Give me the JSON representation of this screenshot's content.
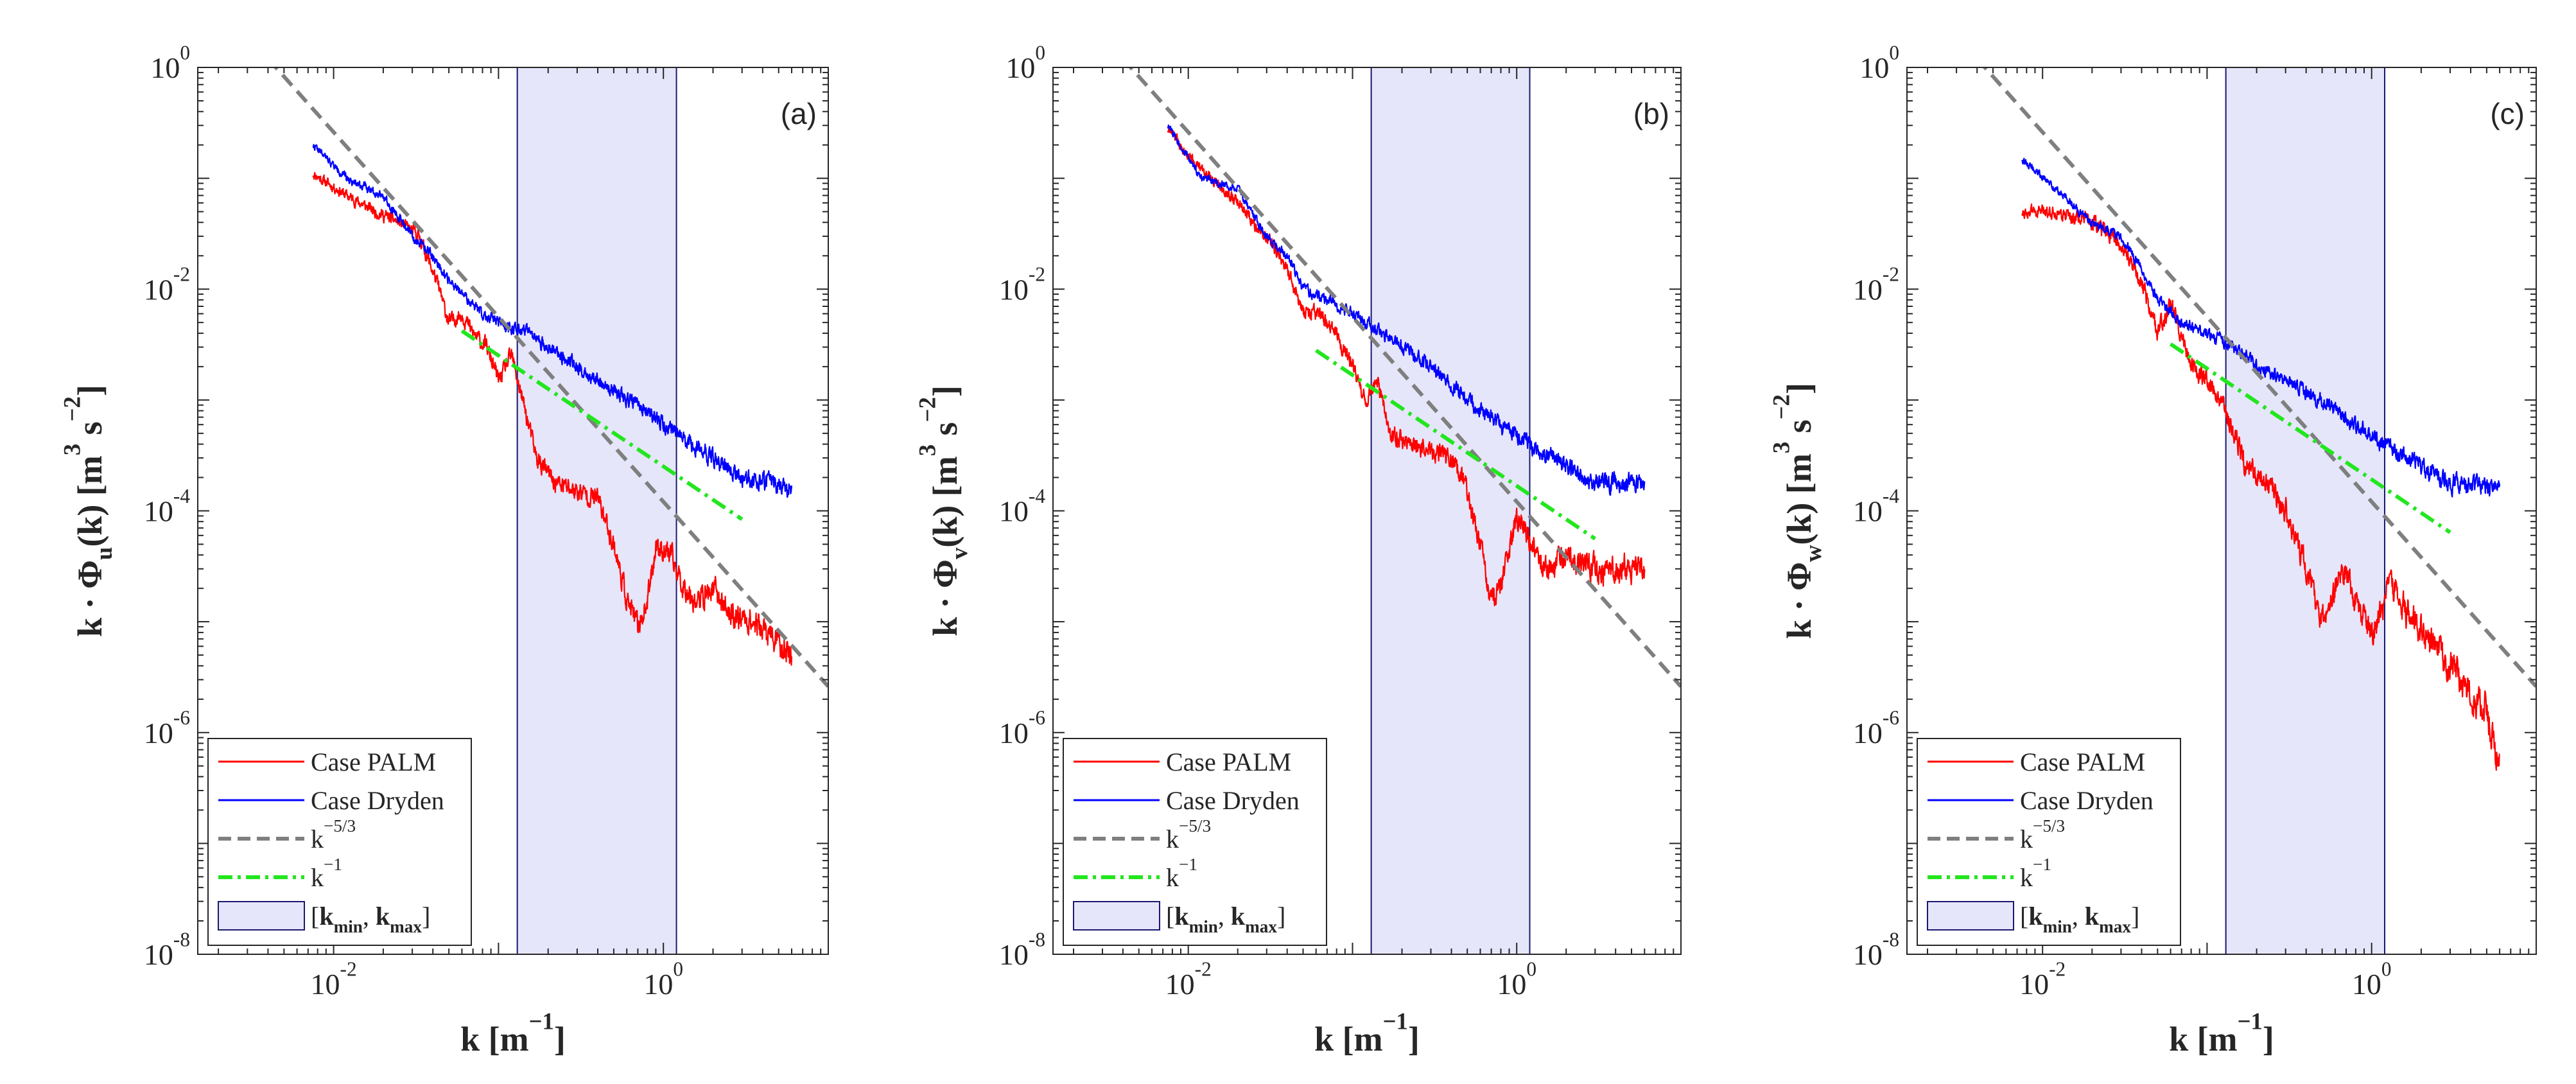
{
  "chart_data": [
    {
      "type": "line",
      "panel": "(a)",
      "ylabel": {
        "pre": "k · ",
        "phi": "Φ",
        "sub": "u",
        "post": "(k) [",
        "m": "m",
        "m_sup": "3",
        "s": " s",
        "s_sup": "−2",
        "close": "]"
      },
      "xlabel": {
        "k": "k",
        "open": " [",
        "m": "m",
        "sup": "−1",
        "close": "]"
      },
      "xscale": "log",
      "yscale": "log",
      "xlim": [
        0.0015,
        10.0
      ],
      "ylim": [
        1e-08,
        1.0
      ],
      "xticks": [
        0.01,
        1.0
      ],
      "xtick_base": "10",
      "xtick_exps": [
        "-2",
        "0"
      ],
      "yticks": [
        1e-08,
        1e-06,
        0.0001,
        0.01,
        1.0
      ],
      "ytick_base": "10",
      "ytick_exps": [
        "-8",
        "-6",
        "-4",
        "-2",
        "0"
      ],
      "band": {
        "kmin": 0.13,
        "kmax": 1.2
      },
      "series": [
        {
          "name": "Case PALM",
          "color": "#ff0000",
          "style": "solid",
          "seed": 11,
          "noise": 0.1,
          "control": [
            [
              0.0075,
              0.11
            ],
            [
              0.012,
              0.07
            ],
            [
              0.018,
              0.05
            ],
            [
              0.025,
              0.04
            ],
            [
              0.033,
              0.03
            ],
            [
              0.042,
              0.012
            ],
            [
              0.05,
              0.005
            ],
            [
              0.06,
              0.006
            ],
            [
              0.07,
              0.004
            ],
            [
              0.085,
              0.003
            ],
            [
              0.1,
              0.0015
            ],
            [
              0.12,
              0.0025
            ],
            [
              0.14,
              0.001
            ],
            [
              0.17,
              0.0003
            ],
            [
              0.22,
              0.00018
            ],
            [
              0.3,
              0.00015
            ],
            [
              0.4,
              0.00013
            ],
            [
              0.5,
              5e-05
            ],
            [
              0.6,
              1.6e-05
            ],
            [
              0.7,
              9e-06
            ],
            [
              0.8,
              1.5e-05
            ],
            [
              0.9,
              5e-05
            ],
            [
              1.1,
              4e-05
            ],
            [
              1.3,
              2.2e-05
            ],
            [
              1.6,
              1.5e-05
            ],
            [
              2.0,
              2e-05
            ],
            [
              2.5,
              1.2e-05
            ],
            [
              3.5,
              1e-05
            ],
            [
              6.0,
              5e-06
            ]
          ]
        },
        {
          "name": "Case Dryden",
          "color": "#0000ff",
          "style": "solid",
          "seed": 22,
          "noise": 0.07,
          "control": [
            [
              0.0075,
              0.2
            ],
            [
              0.012,
              0.1
            ],
            [
              0.02,
              0.07
            ],
            [
              0.03,
              0.03
            ],
            [
              0.04,
              0.02
            ],
            [
              0.05,
              0.012
            ],
            [
              0.06,
              0.009
            ],
            [
              0.08,
              0.006
            ],
            [
              0.1,
              0.005
            ],
            [
              0.15,
              0.004
            ],
            [
              0.2,
              0.003
            ],
            [
              0.3,
              0.002
            ],
            [
              0.5,
              0.0012
            ],
            [
              0.8,
              0.0008
            ],
            [
              1.2,
              0.0005
            ],
            [
              2.0,
              0.0003
            ],
            [
              3.0,
              0.0002
            ],
            [
              6.0,
              0.00016
            ]
          ]
        },
        {
          "name": "k^{-5/3}",
          "color": "#7f7f7f",
          "style": "dashed",
          "line": {
            "x0": 0.004,
            "x1": 10.0,
            "y_at_x0": 1.2,
            "slope": -1.6667
          }
        },
        {
          "name": "k^{-1}",
          "color": "#22e61e",
          "style": "dashdot",
          "line": {
            "x0": 0.06,
            "x1": 3.0,
            "y_at_x0": 0.0042,
            "slope": -1.0
          }
        }
      ]
    },
    {
      "type": "line",
      "panel": "(b)",
      "ylabel": {
        "pre": "k · ",
        "phi": "Φ",
        "sub": "v",
        "post": "(k) [",
        "m": "m",
        "m_sup": "3",
        "s": " s",
        "s_sup": "−2",
        "close": "]"
      },
      "xlabel": {
        "k": "k",
        "open": " [",
        "m": "m",
        "sup": "−1",
        "close": "]"
      },
      "xscale": "log",
      "yscale": "log",
      "xlim": [
        0.0015,
        10.0
      ],
      "ylim": [
        1e-08,
        1.0
      ],
      "xticks": [
        0.01,
        1.0
      ],
      "xtick_base": "10",
      "xtick_exps": [
        "-2",
        "0"
      ],
      "yticks": [
        1e-08,
        1e-06,
        0.0001,
        0.01,
        1.0
      ],
      "ytick_base": "10",
      "ytick_exps": [
        "-8",
        "-6",
        "-4",
        "-2",
        "0"
      ],
      "band": {
        "kmin": 0.13,
        "kmax": 1.2
      },
      "series": [
        {
          "name": "Case PALM",
          "color": "#ff0000",
          "style": "solid",
          "seed": 33,
          "noise": 0.1,
          "control": [
            [
              0.0075,
              0.28
            ],
            [
              0.012,
              0.12
            ],
            [
              0.02,
              0.06
            ],
            [
              0.03,
              0.03
            ],
            [
              0.04,
              0.015
            ],
            [
              0.05,
              0.006
            ],
            [
              0.06,
              0.006
            ],
            [
              0.08,
              0.004
            ],
            [
              0.1,
              0.002
            ],
            [
              0.12,
              0.001
            ],
            [
              0.14,
              0.0015
            ],
            [
              0.17,
              0.0005
            ],
            [
              0.22,
              0.0004
            ],
            [
              0.3,
              0.00035
            ],
            [
              0.4,
              0.0003
            ],
            [
              0.5,
              0.00015
            ],
            [
              0.6,
              5e-05
            ],
            [
              0.7,
              1.5e-05
            ],
            [
              0.8,
              2e-05
            ],
            [
              1.0,
              9e-05
            ],
            [
              1.2,
              6e-05
            ],
            [
              1.5,
              3e-05
            ],
            [
              2.0,
              4e-05
            ],
            [
              3.0,
              3e-05
            ],
            [
              6.0,
              3e-05
            ]
          ]
        },
        {
          "name": "Case Dryden",
          "color": "#0000ff",
          "style": "solid",
          "seed": 44,
          "noise": 0.07,
          "control": [
            [
              0.0075,
              0.3
            ],
            [
              0.012,
              0.1
            ],
            [
              0.02,
              0.08
            ],
            [
              0.03,
              0.03
            ],
            [
              0.04,
              0.02
            ],
            [
              0.05,
              0.01
            ],
            [
              0.07,
              0.008
            ],
            [
              0.1,
              0.006
            ],
            [
              0.15,
              0.004
            ],
            [
              0.2,
              0.003
            ],
            [
              0.3,
              0.002
            ],
            [
              0.5,
              0.001
            ],
            [
              0.8,
              0.0006
            ],
            [
              1.2,
              0.0004
            ],
            [
              2.0,
              0.00025
            ],
            [
              3.0,
              0.00018
            ],
            [
              6.0,
              0.00018
            ]
          ]
        },
        {
          "name": "k^{-5/3}",
          "color": "#7f7f7f",
          "style": "dashed",
          "line": {
            "x0": 0.004,
            "x1": 10.0,
            "y_at_x0": 1.2,
            "slope": -1.6667
          }
        },
        {
          "name": "k^{-1}",
          "color": "#22e61e",
          "style": "dashdot",
          "line": {
            "x0": 0.06,
            "x1": 3.0,
            "y_at_x0": 0.0028,
            "slope": -1.0
          }
        }
      ]
    },
    {
      "type": "line",
      "panel": "(c)",
      "ylabel": {
        "pre": "k · ",
        "phi": "Φ",
        "sub": "w",
        "post": "(k) [",
        "m": "m",
        "m_sup": "3",
        "s": " s",
        "s_sup": "−2",
        "close": "]"
      },
      "xlabel": {
        "k": "k",
        "open": " [",
        "m": "m",
        "sup": "−1",
        "close": "]"
      },
      "xscale": "log",
      "yscale": "log",
      "xlim": [
        0.0015,
        10.0
      ],
      "ylim": [
        1e-08,
        1.0
      ],
      "xticks": [
        0.01,
        1.0
      ],
      "xtick_base": "10",
      "xtick_exps": [
        "-2",
        "0"
      ],
      "yticks": [
        1e-08,
        1e-06,
        0.0001,
        0.01,
        1.0
      ],
      "ytick_base": "10",
      "ytick_exps": [
        "-8",
        "-6",
        "-4",
        "-2",
        "0"
      ],
      "band": {
        "kmin": 0.13,
        "kmax": 1.2
      },
      "series": [
        {
          "name": "Case PALM",
          "color": "#ff0000",
          "style": "solid",
          "seed": 55,
          "noise": 0.12,
          "control": [
            [
              0.0075,
              0.05
            ],
            [
              0.012,
              0.05
            ],
            [
              0.02,
              0.04
            ],
            [
              0.03,
              0.025
            ],
            [
              0.04,
              0.012
            ],
            [
              0.05,
              0.004
            ],
            [
              0.06,
              0.008
            ],
            [
              0.07,
              0.004
            ],
            [
              0.08,
              0.002
            ],
            [
              0.1,
              0.0015
            ],
            [
              0.12,
              0.001
            ],
            [
              0.14,
              0.0006
            ],
            [
              0.17,
              0.00025
            ],
            [
              0.22,
              0.0002
            ],
            [
              0.3,
              0.0001
            ],
            [
              0.4,
              3e-05
            ],
            [
              0.5,
              1e-05
            ],
            [
              0.6,
              2e-05
            ],
            [
              0.7,
              3e-05
            ],
            [
              0.8,
              1.5e-05
            ],
            [
              1.0,
              8e-06
            ],
            [
              1.3,
              2e-05
            ],
            [
              2.0,
              8e-06
            ],
            [
              3.0,
              4e-06
            ],
            [
              5.0,
              1.5e-06
            ],
            [
              6.0,
              5e-07
            ]
          ]
        },
        {
          "name": "Case Dryden",
          "color": "#0000ff",
          "style": "solid",
          "seed": 66,
          "noise": 0.07,
          "control": [
            [
              0.0075,
              0.15
            ],
            [
              0.012,
              0.08
            ],
            [
              0.02,
              0.04
            ],
            [
              0.03,
              0.03
            ],
            [
              0.04,
              0.015
            ],
            [
              0.05,
              0.008
            ],
            [
              0.07,
              0.005
            ],
            [
              0.1,
              0.004
            ],
            [
              0.15,
              0.003
            ],
            [
              0.2,
              0.002
            ],
            [
              0.3,
              0.0015
            ],
            [
              0.5,
              0.001
            ],
            [
              0.8,
              0.0006
            ],
            [
              1.2,
              0.0004
            ],
            [
              2.0,
              0.00025
            ],
            [
              3.0,
              0.00018
            ],
            [
              6.0,
              0.00016
            ]
          ]
        },
        {
          "name": "k^{-5/3}",
          "color": "#7f7f7f",
          "style": "dashed",
          "line": {
            "x0": 0.004,
            "x1": 10.0,
            "y_at_x0": 1.2,
            "slope": -1.6667
          }
        },
        {
          "name": "k^{-1}",
          "color": "#22e61e",
          "style": "dashdot",
          "line": {
            "x0": 0.06,
            "x1": 3.0,
            "y_at_x0": 0.0032,
            "slope": -1.0
          }
        }
      ]
    }
  ],
  "legend": {
    "position": "bottom-left",
    "entries": [
      {
        "key": "palm",
        "label": "Case PALM"
      },
      {
        "key": "dryden",
        "label": "Case Dryden"
      },
      {
        "key": "k53",
        "base": "k",
        "sup": "−5/3"
      },
      {
        "key": "k1",
        "base": "k",
        "sup": "−1"
      },
      {
        "key": "band",
        "open": "[",
        "kmin": "k",
        "kmin_sub": "min",
        "sep": ", ",
        "kmax": "k",
        "kmax_sub": "max",
        "close": "]"
      }
    ]
  },
  "colors": {
    "palm": "#ff0000",
    "dryden": "#0000ff",
    "k53": "#7f7f7f",
    "k1": "#22e61e",
    "band_fill": "#e6e6fa",
    "band_edge": "#191970",
    "axes": "#262626"
  }
}
